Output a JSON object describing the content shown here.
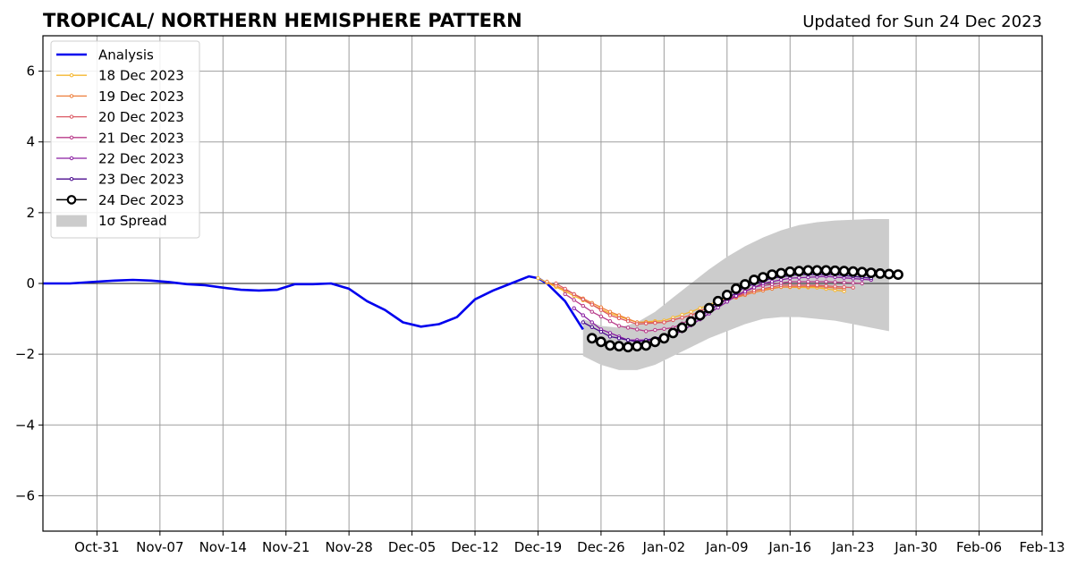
{
  "title": "TROPICAL/ NORTHERN HEMISPHERE PATTERN",
  "updated": "Updated for Sun 24 Dec 2023",
  "colors": {
    "analysis": "#0000ee",
    "spread": "#cccccc",
    "grid": "#9e9e9e",
    "latest": "#000000"
  },
  "chart_data": {
    "type": "line",
    "title": "TROPICAL/ NORTHERN HEMISPHERE PATTERN",
    "xlabel": "",
    "ylabel": "",
    "xlim": [
      "2023-10-25",
      "2024-02-13"
    ],
    "ylim": [
      -7,
      7
    ],
    "yticks": [
      -6,
      -4,
      -2,
      0,
      2,
      4,
      6
    ],
    "ytick_labels": [
      "−6",
      "−4",
      "−2",
      "0",
      "2",
      "4",
      "6"
    ],
    "xticks": [
      "2023-10-31",
      "2023-11-07",
      "2023-11-14",
      "2023-11-21",
      "2023-11-28",
      "2023-12-05",
      "2023-12-12",
      "2023-12-19",
      "2023-12-26",
      "2024-01-02",
      "2024-01-09",
      "2024-01-16",
      "2024-01-23",
      "2024-01-30",
      "2024-02-06",
      "2024-02-13"
    ],
    "xtick_labels": [
      "Oct-31",
      "Nov-07",
      "Nov-14",
      "Nov-21",
      "Nov-28",
      "Dec-05",
      "Dec-12",
      "Dec-19",
      "Dec-26",
      "Jan-02",
      "Jan-09",
      "Jan-16",
      "Jan-23",
      "Jan-30",
      "Feb-06",
      "Feb-13"
    ],
    "grid": true,
    "legend_position": "top-left",
    "analysis": {
      "name": "Analysis",
      "x": [
        "2023-10-25",
        "2023-10-28",
        "2023-10-31",
        "2023-11-02",
        "2023-11-04",
        "2023-11-06",
        "2023-11-08",
        "2023-11-10",
        "2023-11-12",
        "2023-11-14",
        "2023-11-16",
        "2023-11-18",
        "2023-11-20",
        "2023-11-22",
        "2023-11-24",
        "2023-11-26",
        "2023-11-28",
        "2023-11-30",
        "2023-12-02",
        "2023-12-04",
        "2023-12-06",
        "2023-12-08",
        "2023-12-10",
        "2023-12-12",
        "2023-12-14",
        "2023-12-16",
        "2023-12-18",
        "2023-12-19",
        "2023-12-20",
        "2023-12-22",
        "2023-12-24"
      ],
      "y": [
        0.0,
        0.0,
        0.05,
        0.08,
        0.1,
        0.08,
        0.04,
        -0.02,
        -0.05,
        -0.12,
        -0.18,
        -0.2,
        -0.18,
        -0.02,
        -0.02,
        0.0,
        -0.15,
        -0.5,
        -0.75,
        -1.1,
        -1.22,
        -1.15,
        -0.95,
        -0.45,
        -0.2,
        0.0,
        0.2,
        0.15,
        0.0,
        -0.5,
        -1.3
      ]
    },
    "spread": {
      "name": "1σ Spread",
      "x": [
        "2023-12-24",
        "2023-12-26",
        "2023-12-28",
        "2023-12-30",
        "2024-01-01",
        "2024-01-03",
        "2024-01-05",
        "2024-01-07",
        "2024-01-09",
        "2024-01-11",
        "2024-01-13",
        "2024-01-15",
        "2024-01-17",
        "2024-01-19",
        "2024-01-21",
        "2024-01-23",
        "2024-01-25",
        "2024-01-27"
      ],
      "upper": [
        -1.0,
        -1.2,
        -1.25,
        -1.1,
        -0.8,
        -0.4,
        0.0,
        0.4,
        0.75,
        1.05,
        1.3,
        1.5,
        1.65,
        1.73,
        1.78,
        1.8,
        1.82,
        1.82
      ],
      "lower": [
        -2.05,
        -2.3,
        -2.45,
        -2.45,
        -2.3,
        -2.05,
        -1.8,
        -1.55,
        -1.35,
        -1.15,
        -1.0,
        -0.95,
        -0.95,
        -1.0,
        -1.05,
        -1.15,
        -1.25,
        -1.35
      ]
    },
    "series": [
      {
        "name": "18 Dec 2023",
        "color": "#f5b730",
        "start": "2023-12-19",
        "end": "2024-01-22",
        "kx": [
          "2023-12-19",
          "2023-12-23",
          "2023-12-27",
          "2023-12-30",
          "2024-01-02",
          "2024-01-05",
          "2024-01-08",
          "2024-01-12",
          "2024-01-15",
          "2024-01-19",
          "2024-01-22"
        ],
        "ky": [
          0.15,
          -0.35,
          -0.85,
          -1.1,
          -1.05,
          -0.8,
          -0.5,
          -0.2,
          -0.1,
          -0.12,
          -0.22
        ]
      },
      {
        "name": "19 Dec 2023",
        "color": "#ee7f3b",
        "start": "2023-12-20",
        "end": "2024-01-22",
        "kx": [
          "2023-12-20",
          "2023-12-23",
          "2023-12-27",
          "2023-12-30",
          "2024-01-02",
          "2024-01-05",
          "2024-01-08",
          "2024-01-12",
          "2024-01-15",
          "2024-01-19",
          "2024-01-22"
        ],
        "ky": [
          0.05,
          -0.3,
          -0.8,
          -1.1,
          -1.1,
          -0.9,
          -0.55,
          -0.25,
          -0.1,
          -0.08,
          -0.15
        ]
      },
      {
        "name": "20 Dec 2023",
        "color": "#dc5a64",
        "start": "2023-12-21",
        "end": "2024-01-23",
        "kx": [
          "2023-12-21",
          "2023-12-24",
          "2023-12-27",
          "2023-12-30",
          "2024-01-02",
          "2024-01-05",
          "2024-01-08",
          "2024-01-12",
          "2024-01-15",
          "2024-01-19",
          "2024-01-23"
        ],
        "ky": [
          0.0,
          -0.45,
          -0.9,
          -1.15,
          -1.1,
          -0.9,
          -0.55,
          -0.2,
          -0.05,
          -0.05,
          -0.12
        ]
      },
      {
        "name": "21 Dec 2023",
        "color": "#b83c8a",
        "start": "2023-12-22",
        "end": "2024-01-24",
        "kx": [
          "2023-12-22",
          "2023-12-25",
          "2023-12-28",
          "2023-12-31",
          "2024-01-03",
          "2024-01-06",
          "2024-01-09",
          "2024-01-12",
          "2024-01-16",
          "2024-01-20",
          "2024-01-24"
        ],
        "ky": [
          -0.3,
          -0.8,
          -1.2,
          -1.35,
          -1.25,
          -0.9,
          -0.45,
          -0.1,
          0.05,
          0.05,
          0.0
        ]
      },
      {
        "name": "22 Dec 2023",
        "color": "#8a1fa2",
        "start": "2023-12-23",
        "end": "2024-01-25",
        "kx": [
          "2023-12-23",
          "2023-12-26",
          "2023-12-29",
          "2024-01-01",
          "2024-01-04",
          "2024-01-07",
          "2024-01-10",
          "2024-01-13",
          "2024-01-16",
          "2024-01-20",
          "2024-01-25"
        ],
        "ky": [
          -0.7,
          -1.3,
          -1.6,
          -1.6,
          -1.35,
          -0.85,
          -0.35,
          0.0,
          0.15,
          0.2,
          0.1
        ]
      },
      {
        "name": "23 Dec 2023",
        "color": "#4b0c8f",
        "start": "2023-12-24",
        "end": "2024-01-25",
        "kx": [
          "2023-12-24",
          "2023-12-27",
          "2023-12-30",
          "2024-01-02",
          "2024-01-05",
          "2024-01-08",
          "2024-01-11",
          "2024-01-14",
          "2024-01-17",
          "2024-01-21",
          "2024-01-25"
        ],
        "ky": [
          -1.1,
          -1.5,
          -1.65,
          -1.5,
          -1.1,
          -0.6,
          -0.1,
          0.15,
          0.25,
          0.25,
          0.15
        ]
      },
      {
        "name": "24 Dec 2023",
        "color": "#000000",
        "start": "2023-12-25",
        "end": "2024-01-28",
        "latest": true,
        "kx": [
          "2023-12-25",
          "2023-12-27",
          "2023-12-29",
          "2023-12-31",
          "2024-01-02",
          "2024-01-04",
          "2024-01-06",
          "2024-01-08",
          "2024-01-10",
          "2024-01-12",
          "2024-01-14",
          "2024-01-16",
          "2024-01-18",
          "2024-01-20",
          "2024-01-22",
          "2024-01-24",
          "2024-01-26",
          "2024-01-28"
        ],
        "ky": [
          -1.55,
          -1.75,
          -1.8,
          -1.75,
          -1.55,
          -1.25,
          -0.9,
          -0.5,
          -0.15,
          0.1,
          0.25,
          0.33,
          0.37,
          0.37,
          0.35,
          0.32,
          0.28,
          0.25
        ]
      }
    ],
    "legend": [
      {
        "label": "Analysis",
        "kind": "analysis"
      },
      {
        "label": "18 Dec 2023",
        "kind": "series",
        "index": 0
      },
      {
        "label": "19 Dec 2023",
        "kind": "series",
        "index": 1
      },
      {
        "label": "20 Dec 2023",
        "kind": "series",
        "index": 2
      },
      {
        "label": "21 Dec 2023",
        "kind": "series",
        "index": 3
      },
      {
        "label": "22 Dec 2023",
        "kind": "series",
        "index": 4
      },
      {
        "label": "23 Dec 2023",
        "kind": "series",
        "index": 5
      },
      {
        "label": "24 Dec 2023",
        "kind": "series",
        "index": 6
      },
      {
        "label": "1σ Spread",
        "kind": "spread"
      }
    ]
  }
}
